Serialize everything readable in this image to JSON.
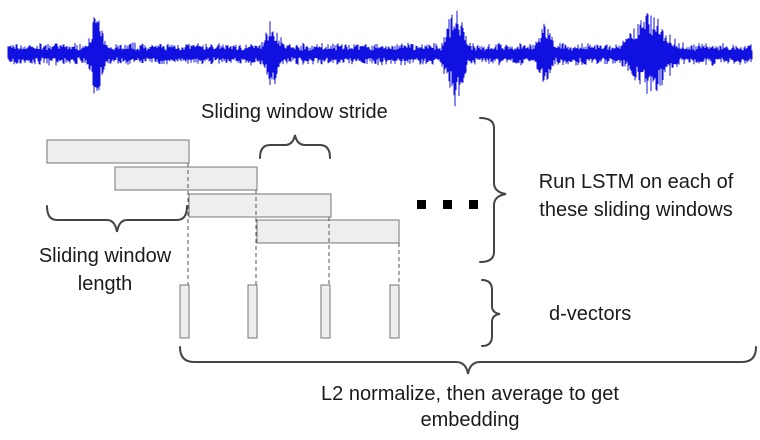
{
  "labels": {
    "stride": "Sliding window stride",
    "window_length_line1": "Sliding window",
    "window_length_line2": "length",
    "run_lstm_line1": "Run LSTM on each of",
    "run_lstm_line2": "these sliding windows",
    "dvectors": "d-vectors",
    "normalize_line1": "L2 normalize, then average to get",
    "normalize_line2": "embedding"
  },
  "colors": {
    "waveform": "#1010e0",
    "window_fill": "#eeeeee",
    "window_stroke": "#777777",
    "dashed_line": "#555555",
    "brace": "#444444",
    "ellipsis": "#000000"
  },
  "windows_count": 4,
  "dvector_count": 4
}
